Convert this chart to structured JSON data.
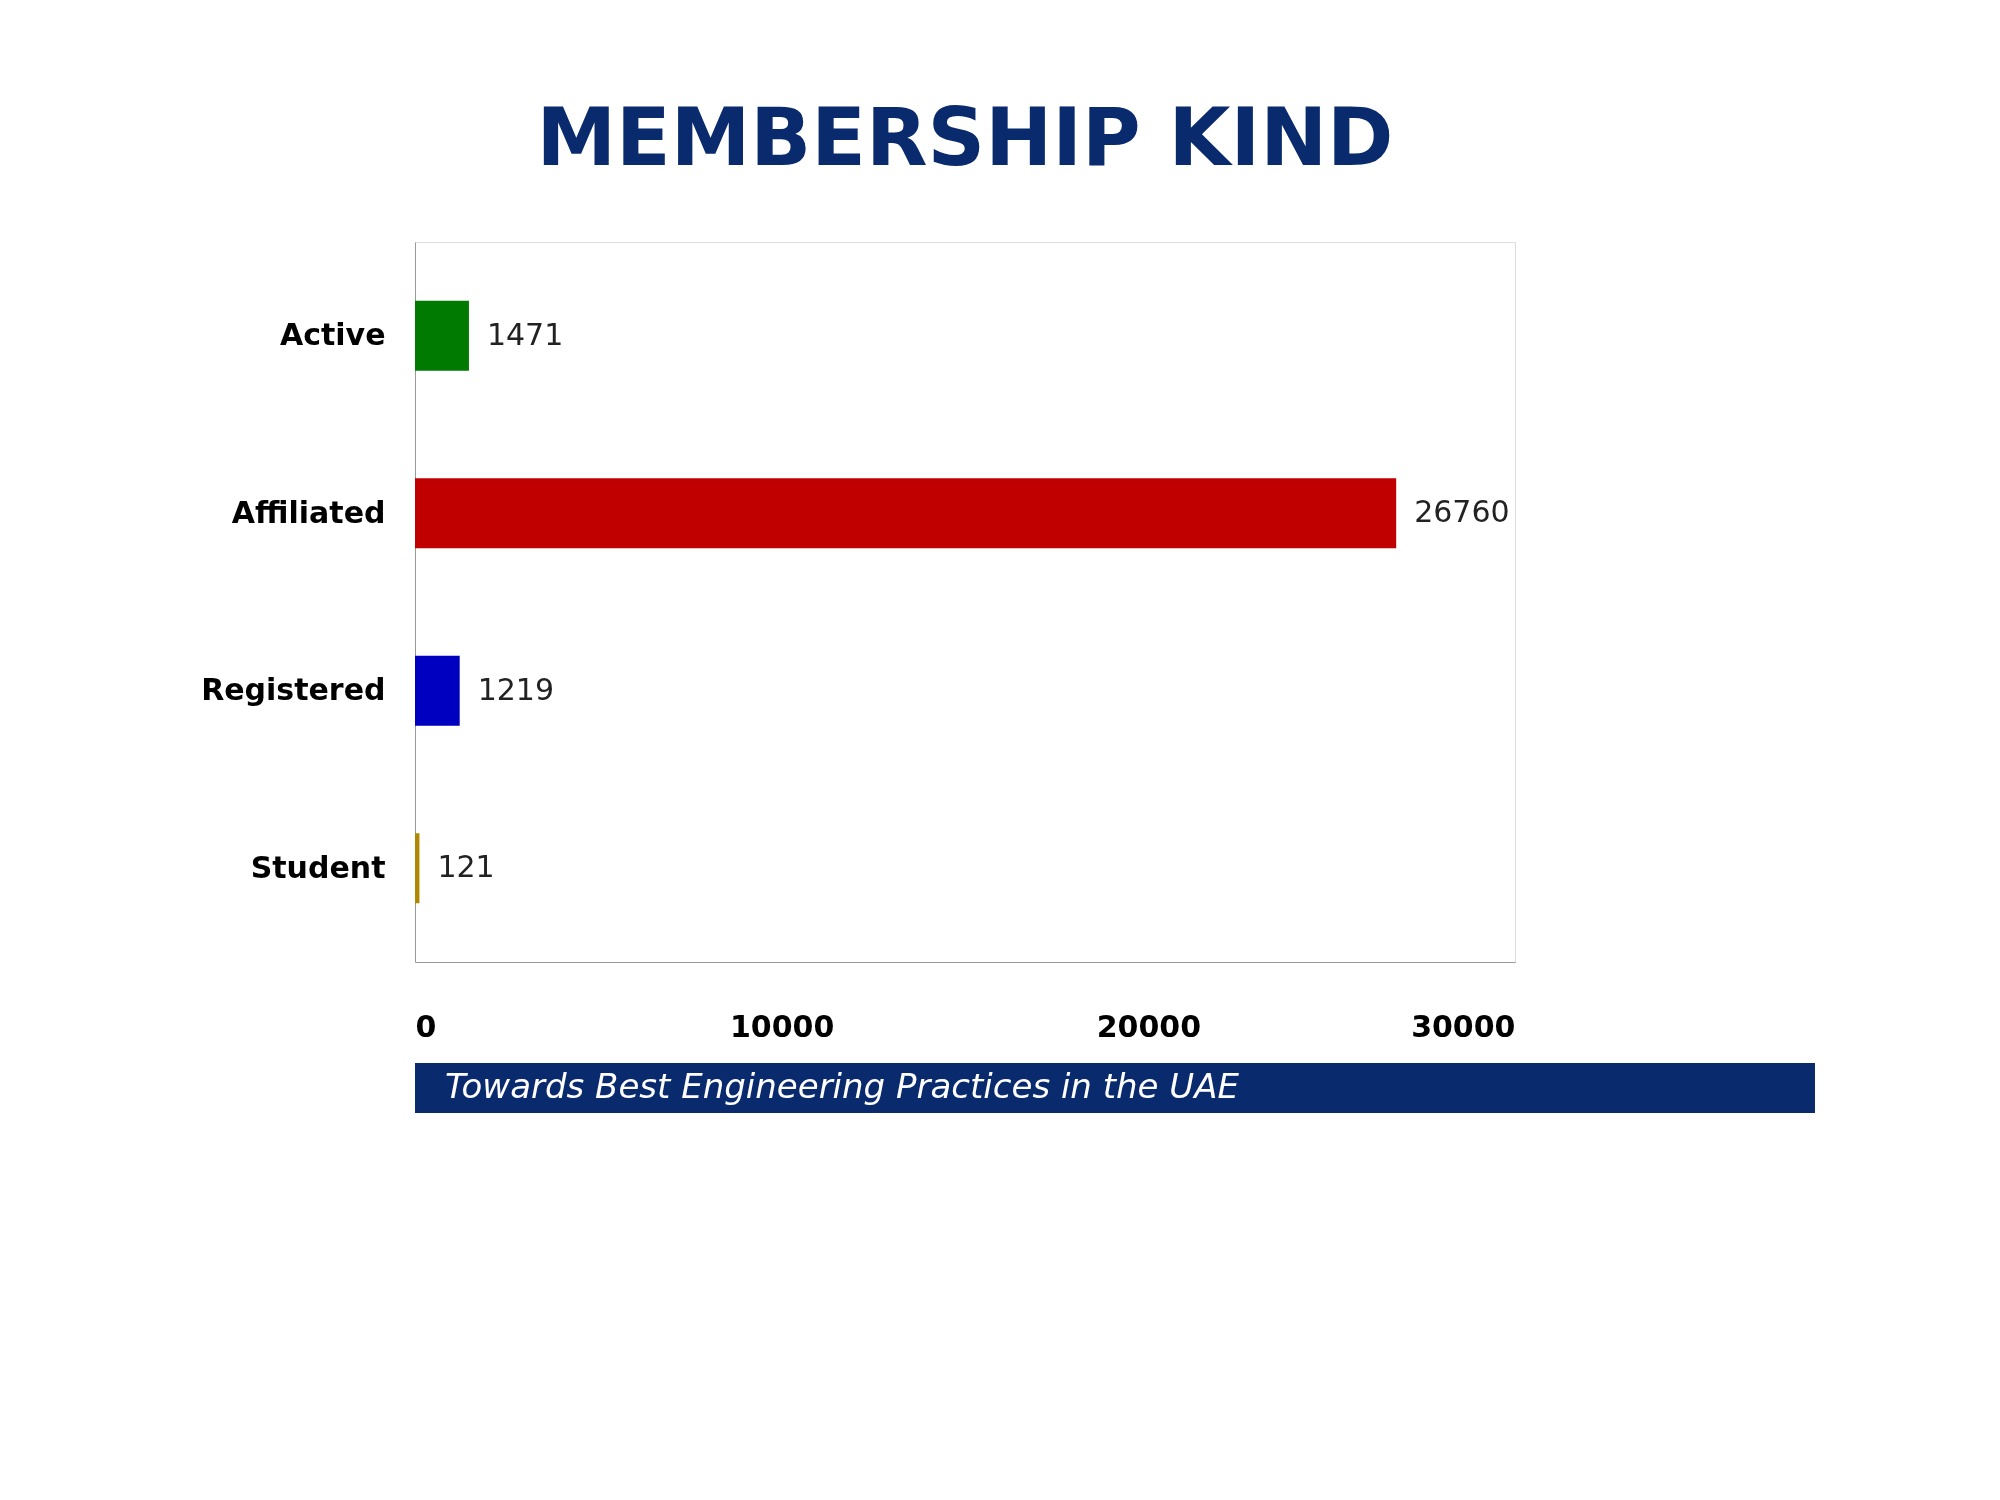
{
  "chart_data": {
    "type": "bar",
    "orientation": "horizontal",
    "title": "MEMBERSHIP KIND",
    "categories": [
      "Active",
      "Affiliated",
      "Registered",
      "Student"
    ],
    "values": [
      1471,
      26760,
      1219,
      121
    ],
    "colors": [
      "#007a00",
      "#c00000",
      "#0000c0",
      "#b08800"
    ],
    "xlim": [
      0,
      30000
    ],
    "xticks": [
      0,
      10000,
      20000,
      30000
    ],
    "data_labels": true,
    "grid": false,
    "annotations": [
      "Towards Best Engineering Practices in the UAE"
    ]
  }
}
